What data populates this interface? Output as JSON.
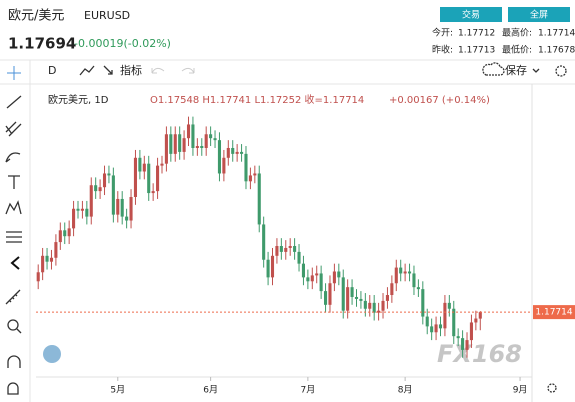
{
  "header": {
    "name": "欧元/美元",
    "symbol": "EURUSD",
    "price": 1.17694,
    "change": "-0.00019(-0.02%)",
    "buttons": [
      "交易",
      "全屏"
    ],
    "stats": [
      {
        "label": "今开:",
        "value": 1.17712
      },
      {
        "label": "最高价:",
        "value": 1.17714
      },
      {
        "label": "昨收:",
        "value": 1.17713
      },
      {
        "label": "最低价:",
        "value": 1.17678
      }
    ]
  },
  "toolbar": {
    "interval": "D",
    "indicators": "指标",
    "save": "保存"
  },
  "chart_data": {
    "type": "candlestick",
    "legend_title": "欧元美元, 1D",
    "legend_ohlc": "O1.17548 H1.17741 L1.17252 收=1.17714",
    "legend_change": "+0.00167 (+0.14%)",
    "watermark": "FX168",
    "up_color": "#c0504d",
    "down_color": "#3f9a6b",
    "last_color": "#ee6a4a",
    "xlim": [
      -0.5,
      111.7
    ],
    "ylim": [
      1.1611,
      1.2343
    ],
    "xticks": [
      {
        "value": 18,
        "label": "5月"
      },
      {
        "value": 39,
        "label": "6月"
      },
      {
        "value": 61,
        "label": "7月"
      },
      {
        "value": 83,
        "label": "8月"
      },
      {
        "value": 109,
        "label": "9月"
      }
    ],
    "open": [
      1.185,
      1.1873,
      1.1915,
      1.19,
      1.191,
      1.195,
      1.198,
      1.1965,
      1.1985,
      1.2035,
      1.203,
      1.2035,
      1.2015,
      1.2095,
      1.208,
      1.209,
      1.2125,
      1.212,
      1.202,
      1.206,
      1.2015,
      1.2005,
      1.2065,
      1.2165,
      1.213,
      1.215,
      1.2075,
      1.208,
      1.2145,
      1.215,
      1.2225,
      1.2175,
      1.2225,
      1.218,
      1.2215,
      1.225,
      1.219,
      1.2195,
      1.219,
      1.2225,
      1.2215,
      1.221,
      1.2125,
      1.2165,
      1.219,
      1.2175,
      1.218,
      1.2175,
      1.2105,
      1.212,
      1.2125,
      1.1995,
      1.1905,
      1.186,
      1.1915,
      1.194,
      1.1925,
      1.1935,
      1.194,
      1.1925,
      1.1895,
      1.186,
      1.185,
      1.1865,
      1.187,
      1.1825,
      1.179,
      1.1845,
      1.1875,
      1.186,
      1.1775,
      1.1835,
      1.181,
      1.1805,
      1.18,
      1.178,
      1.1795,
      1.177,
      1.1775,
      1.18,
      1.1815,
      1.1845,
      1.1885,
      1.187,
      1.1875,
      1.187,
      1.1835,
      1.183,
      1.176,
      1.1735,
      1.172,
      1.174,
      1.173,
      1.1795,
      1.178,
      1.171,
      1.1705,
      1.1675,
      1.17,
      1.1745,
      1.17548
    ],
    "high": [
      1.1893,
      1.1935,
      1.1935,
      1.193,
      1.197,
      1.2,
      1.2,
      1.2005,
      1.2055,
      1.2055,
      1.2055,
      1.2055,
      1.2115,
      1.2115,
      1.211,
      1.2145,
      1.2145,
      1.214,
      1.208,
      1.208,
      1.2035,
      1.2085,
      1.2185,
      1.2185,
      1.217,
      1.217,
      1.21,
      1.2165,
      1.217,
      1.2245,
      1.2245,
      1.2245,
      1.2245,
      1.2235,
      1.227,
      1.227,
      1.2215,
      1.2215,
      1.2245,
      1.2245,
      1.2235,
      1.223,
      1.2185,
      1.221,
      1.221,
      1.22,
      1.22,
      1.2195,
      1.214,
      1.2145,
      1.2145,
      1.2015,
      1.1925,
      1.1935,
      1.196,
      1.196,
      1.1955,
      1.196,
      1.196,
      1.1945,
      1.1915,
      1.188,
      1.1885,
      1.189,
      1.189,
      1.1845,
      1.1865,
      1.1895,
      1.1895,
      1.188,
      1.1855,
      1.1855,
      1.183,
      1.1825,
      1.182,
      1.1815,
      1.1815,
      1.1795,
      1.182,
      1.1835,
      1.1865,
      1.1905,
      1.1905,
      1.1895,
      1.1895,
      1.189,
      1.1855,
      1.185,
      1.178,
      1.1755,
      1.176,
      1.176,
      1.1815,
      1.1815,
      1.18,
      1.173,
      1.1725,
      1.172,
      1.1765,
      1.1775,
      1.17741
    ],
    "low": [
      1.183,
      1.1853,
      1.188,
      1.188,
      1.189,
      1.193,
      1.1945,
      1.1945,
      1.1965,
      1.201,
      1.201,
      1.1995,
      1.1995,
      1.206,
      1.206,
      1.207,
      1.21,
      1.2,
      1.2,
      1.1995,
      1.1985,
      1.1985,
      1.2045,
      1.211,
      1.211,
      1.2055,
      1.2055,
      1.206,
      1.2125,
      1.213,
      1.2155,
      1.2155,
      1.216,
      1.216,
      1.2195,
      1.217,
      1.217,
      1.217,
      1.217,
      1.2195,
      1.219,
      1.2105,
      1.2105,
      1.2145,
      1.2155,
      1.2155,
      1.2155,
      1.2085,
      1.2085,
      1.21,
      1.1975,
      1.1885,
      1.184,
      1.184,
      1.1895,
      1.1905,
      1.1905,
      1.1915,
      1.1905,
      1.1875,
      1.184,
      1.183,
      1.183,
      1.1845,
      1.1805,
      1.177,
      1.177,
      1.1825,
      1.184,
      1.1755,
      1.1755,
      1.179,
      1.1785,
      1.178,
      1.176,
      1.176,
      1.175,
      1.175,
      1.1755,
      1.178,
      1.1795,
      1.1825,
      1.185,
      1.185,
      1.185,
      1.1815,
      1.181,
      1.174,
      1.1715,
      1.17,
      1.17,
      1.171,
      1.171,
      1.176,
      1.169,
      1.1685,
      1.1655,
      1.1655,
      1.168,
      1.1725,
      1.17252
    ],
    "close": [
      1.1873,
      1.1915,
      1.19,
      1.191,
      1.195,
      1.198,
      1.1965,
      1.1985,
      1.2035,
      1.203,
      1.2035,
      1.2015,
      1.2095,
      1.208,
      1.209,
      1.2125,
      1.212,
      1.202,
      1.206,
      1.2015,
      1.2005,
      1.2065,
      1.2165,
      1.213,
      1.215,
      1.2075,
      1.208,
      1.2145,
      1.215,
      1.2225,
      1.2175,
      1.2225,
      1.218,
      1.2215,
      1.225,
      1.219,
      1.2195,
      1.219,
      1.2225,
      1.2215,
      1.221,
      1.2125,
      1.2165,
      1.219,
      1.2175,
      1.218,
      1.2175,
      1.2105,
      1.212,
      1.2125,
      1.1995,
      1.1905,
      1.186,
      1.1915,
      1.194,
      1.1925,
      1.1935,
      1.194,
      1.1925,
      1.1895,
      1.186,
      1.185,
      1.1865,
      1.187,
      1.1825,
      1.179,
      1.1845,
      1.1875,
      1.186,
      1.1775,
      1.1835,
      1.181,
      1.1805,
      1.18,
      1.178,
      1.1795,
      1.177,
      1.1775,
      1.18,
      1.1815,
      1.1845,
      1.1885,
      1.187,
      1.1875,
      1.187,
      1.1835,
      1.183,
      1.176,
      1.1735,
      1.172,
      1.174,
      1.173,
      1.1795,
      1.178,
      1.171,
      1.1705,
      1.1675,
      1.17,
      1.1745,
      1.1755,
      1.17714
    ]
  }
}
